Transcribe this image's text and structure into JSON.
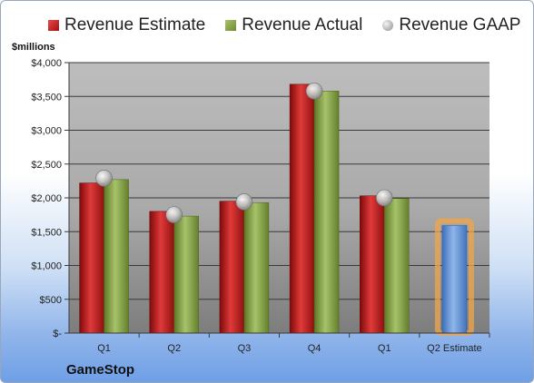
{
  "unit_label": "$millions",
  "company": "GameStop",
  "colors": {
    "estimate": "#c0191b",
    "actual": "#86a845",
    "gaap": "#a9a9a9",
    "q2_estimate": "#5b8fd6",
    "highlight": "#f0a64a"
  },
  "chart_data": {
    "type": "bar",
    "categories": [
      "Q1",
      "Q2",
      "Q3",
      "Q4",
      "Q1",
      "Q2 Estimate"
    ],
    "series": [
      {
        "name": "Revenue Estimate",
        "values": [
          2220,
          1800,
          1950,
          3680,
          2030,
          null
        ]
      },
      {
        "name": "Revenue Actual",
        "values": [
          2270,
          1730,
          1930,
          3580,
          1990,
          null
        ]
      },
      {
        "name": "Revenue GAAP",
        "values": [
          2290,
          1750,
          1940,
          3580,
          2000,
          null
        ]
      },
      {
        "name": "Q2 Estimate",
        "values": [
          null,
          null,
          null,
          null,
          null,
          1590
        ]
      }
    ],
    "ylim": [
      0,
      4000
    ],
    "yticks": [
      {
        "value": 0,
        "label": "$-"
      },
      {
        "value": 500,
        "label": "$500"
      },
      {
        "value": 1000,
        "label": "$1,000"
      },
      {
        "value": 1500,
        "label": "$1,500"
      },
      {
        "value": 2000,
        "label": "$2,000"
      },
      {
        "value": 2500,
        "label": "$2,500"
      },
      {
        "value": 3000,
        "label": "$3,000"
      },
      {
        "value": 3500,
        "label": "$3,500"
      },
      {
        "value": 4000,
        "label": "$4,000"
      }
    ],
    "legend": [
      "Revenue Estimate",
      "Revenue Actual",
      "Revenue GAAP"
    ],
    "legend_position": "top",
    "grid": true
  }
}
